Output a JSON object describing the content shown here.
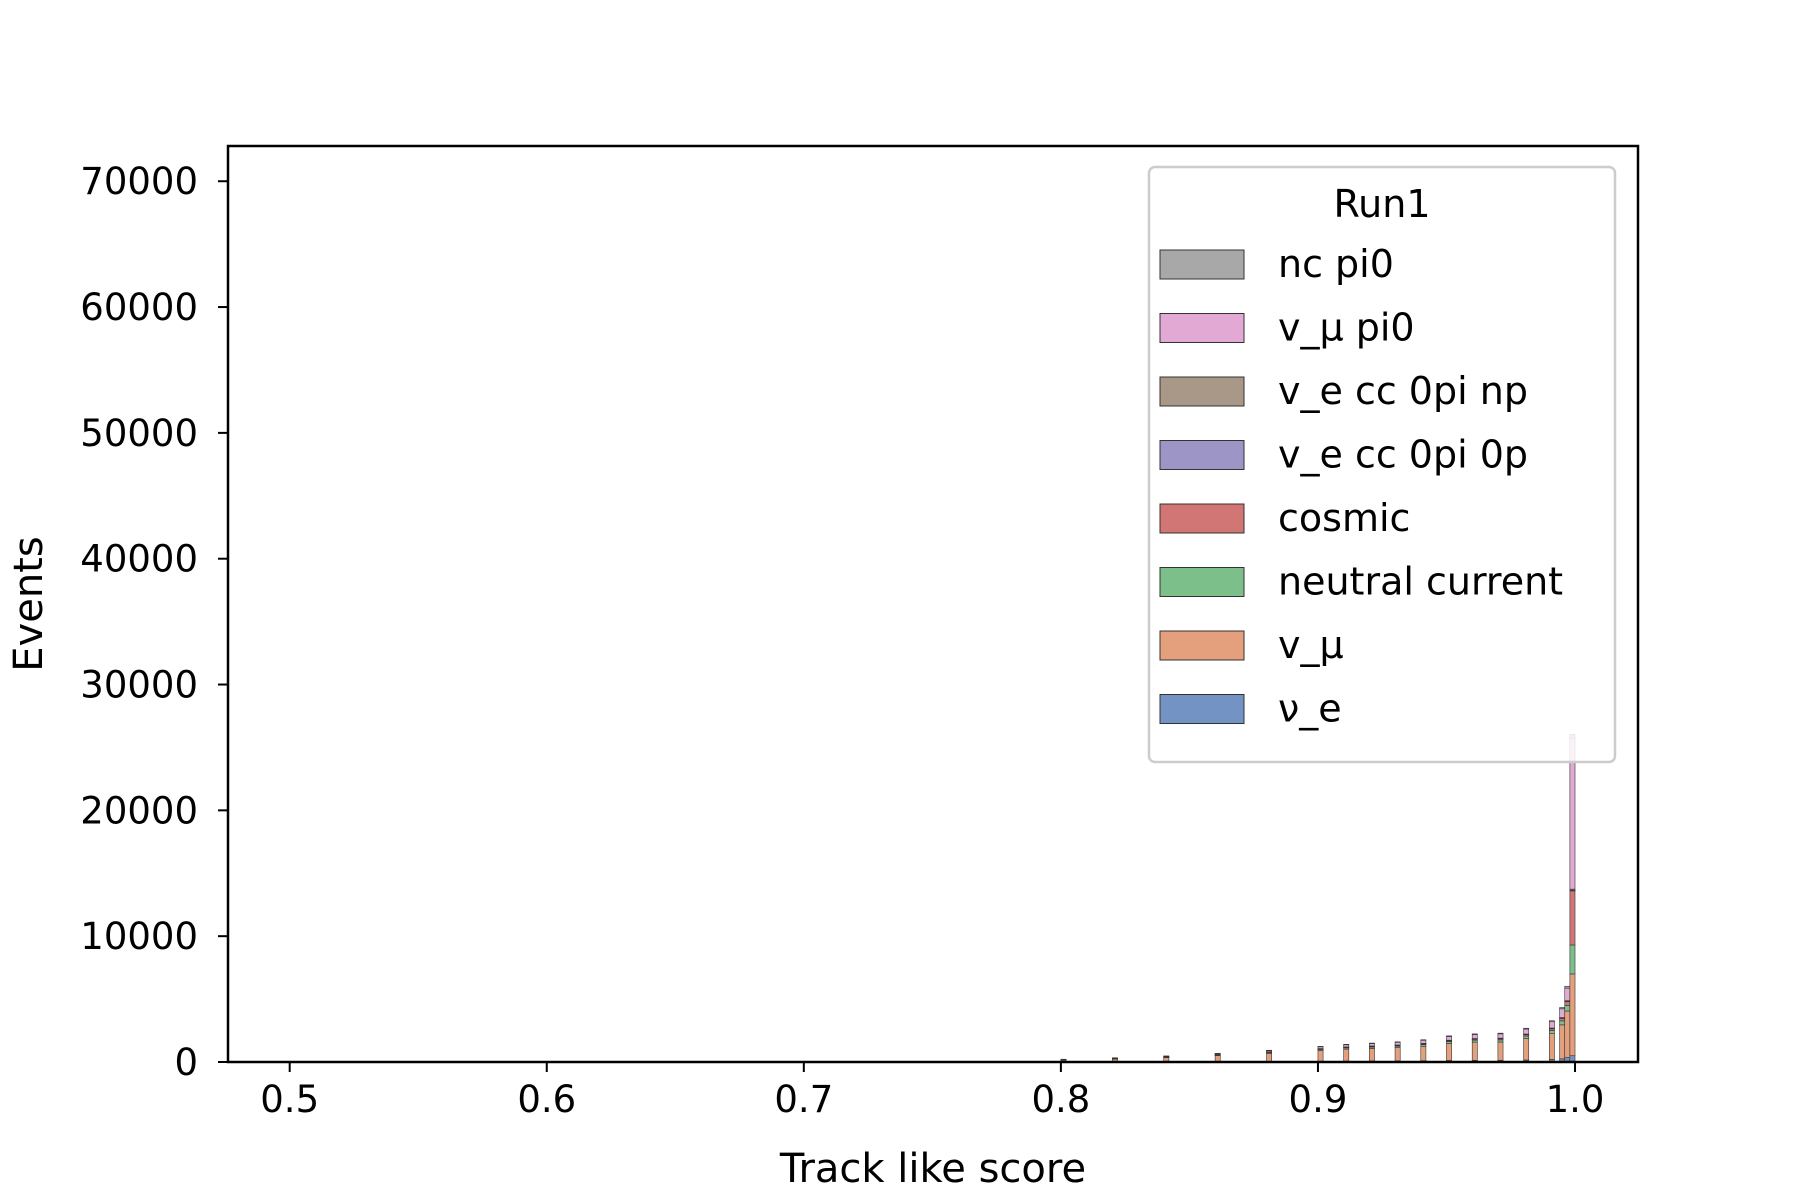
{
  "chart_data": {
    "type": "bar",
    "stacked": true,
    "histogram": true,
    "xlabel": "Track like score",
    "ylabel": "Events",
    "xlim": [
      0.476,
      1.0245
    ],
    "ylim": [
      0,
      72800
    ],
    "xticks": [
      0.5,
      0.6,
      0.7,
      0.8,
      0.9,
      1.0
    ],
    "xtick_labels": [
      "0.5",
      "0.6",
      "0.7",
      "0.8",
      "0.9",
      "1.0"
    ],
    "yticks": [
      0,
      10000,
      20000,
      30000,
      40000,
      50000,
      60000,
      70000
    ],
    "ytick_labels": [
      "0",
      "10000",
      "20000",
      "30000",
      "40000",
      "50000",
      "60000",
      "70000"
    ],
    "grid": false,
    "legend": {
      "title": "Run1",
      "placement": "top-right",
      "entries": [
        "nc pi0",
        "v_μ pi0",
        "v_e cc 0pi np",
        "v_e cc 0pi 0p",
        "cosmic",
        "neutral current",
        "v_μ",
        "ν_e"
      ]
    },
    "bin_width": 0.002,
    "bins": [
      0.8,
      0.82,
      0.84,
      0.86,
      0.88,
      0.9,
      0.91,
      0.92,
      0.93,
      0.94,
      0.95,
      0.96,
      0.97,
      0.98,
      0.99,
      0.994,
      0.996,
      0.998
    ],
    "series": [
      {
        "name": "ν_e",
        "color": "#7393c5",
        "values": [
          10,
          15,
          20,
          30,
          40,
          60,
          70,
          80,
          90,
          100,
          120,
          130,
          140,
          160,
          200,
          250,
          350,
          500
        ]
      },
      {
        "name": "v_μ",
        "color": "#e4a07c",
        "values": [
          150,
          230,
          330,
          480,
          650,
          850,
          950,
          1000,
          1050,
          1150,
          1350,
          1450,
          1450,
          1700,
          2050,
          2700,
          3700,
          6500
        ]
      },
      {
        "name": "neutral current",
        "color": "#7dbf8a",
        "values": [
          20,
          30,
          40,
          50,
          70,
          90,
          100,
          110,
          120,
          130,
          150,
          160,
          170,
          200,
          250,
          320,
          450,
          2300
        ]
      },
      {
        "name": "cosmic",
        "color": "#d27575",
        "values": [
          10,
          15,
          20,
          30,
          40,
          50,
          55,
          60,
          65,
          70,
          80,
          90,
          100,
          120,
          150,
          200,
          300,
          4300
        ]
      },
      {
        "name": "v_e cc 0pi 0p",
        "color": "#9e95c7",
        "values": [
          2,
          3,
          4,
          5,
          6,
          8,
          9,
          10,
          11,
          12,
          14,
          15,
          16,
          18,
          20,
          25,
          30,
          60
        ]
      },
      {
        "name": "v_e cc 0pi np",
        "color": "#a99887",
        "values": [
          3,
          4,
          5,
          6,
          8,
          10,
          12,
          14,
          15,
          16,
          18,
          20,
          22,
          25,
          30,
          35,
          40,
          80
        ]
      },
      {
        "name": "v_μ pi0",
        "color": "#e2a9d4",
        "values": [
          20,
          30,
          50,
          70,
          100,
          150,
          180,
          200,
          220,
          250,
          300,
          320,
          340,
          400,
          500,
          700,
          1000,
          12000
        ]
      },
      {
        "name": "nc pi0",
        "color": "#a8a8a8",
        "values": [
          5,
          8,
          10,
          15,
          20,
          25,
          28,
          30,
          35,
          40,
          45,
          50,
          55,
          60,
          80,
          100,
          150,
          300
        ]
      }
    ]
  }
}
